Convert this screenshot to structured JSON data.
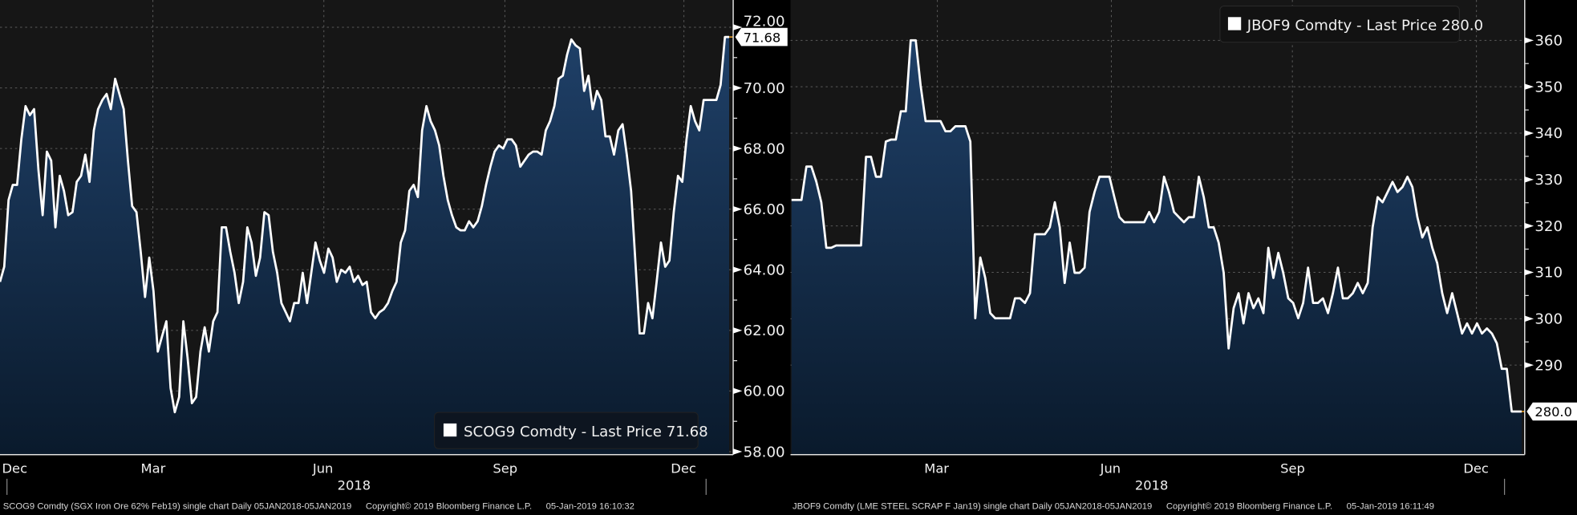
{
  "chart_data": [
    {
      "type": "area",
      "title": "SCOG9 Comdty (SGX Iron Ore 62% Feb19)",
      "legend": "SCOG9 Comdty - Last Price 71.68",
      "legend_placement": "bottom-right",
      "last_price": 71.68,
      "last_price_label": "71.68",
      "xlabel": "2018",
      "x_ticks": [
        "Dec",
        "Mar",
        "Jun",
        "Sep",
        "Dec"
      ],
      "y_ticks": [
        58,
        60,
        62,
        64,
        66,
        68,
        70,
        72
      ],
      "y_tick_labels": [
        "58.00",
        "60.00",
        "62.00",
        "64.00",
        "66.00",
        "68.00",
        "70.00",
        "72.00"
      ],
      "ylim": [
        57.9,
        72.9
      ],
      "grid": true,
      "values": [
        63.6,
        64.1,
        66.3,
        66.8,
        66.8,
        68.3,
        69.4,
        69.1,
        69.3,
        67.3,
        65.8,
        67.9,
        67.6,
        65.4,
        67.1,
        66.6,
        65.8,
        65.9,
        66.9,
        67.1,
        67.8,
        66.9,
        68.6,
        69.3,
        69.6,
        69.8,
        69.3,
        70.3,
        69.8,
        69.3,
        67.6,
        66.1,
        65.9,
        64.6,
        63.1,
        64.4,
        63.3,
        61.3,
        61.8,
        62.3,
        60.1,
        59.3,
        59.8,
        62.3,
        61.1,
        59.6,
        59.8,
        61.3,
        62.1,
        61.3,
        62.3,
        62.6,
        65.4,
        65.4,
        64.6,
        63.9,
        62.9,
        63.6,
        65.4,
        64.9,
        63.8,
        64.4,
        65.9,
        65.8,
        64.6,
        63.9,
        62.9,
        62.6,
        62.3,
        62.9,
        62.9,
        63.9,
        62.9,
        63.9,
        64.9,
        64.3,
        63.9,
        64.7,
        64.4,
        63.6,
        64.0,
        63.9,
        64.1,
        63.6,
        63.8,
        63.5,
        63.6,
        62.6,
        62.4,
        62.6,
        62.7,
        62.9,
        63.3,
        63.6,
        64.9,
        65.3,
        66.6,
        66.8,
        66.4,
        68.6,
        69.4,
        68.9,
        68.6,
        68.1,
        67.1,
        66.3,
        65.8,
        65.4,
        65.3,
        65.3,
        65.6,
        65.4,
        65.6,
        66.1,
        66.8,
        67.4,
        67.9,
        68.1,
        68.0,
        68.3,
        68.3,
        68.1,
        67.4,
        67.6,
        67.8,
        67.9,
        67.9,
        67.8,
        68.6,
        68.9,
        69.4,
        70.3,
        70.4,
        71.1,
        71.6,
        71.4,
        71.3,
        69.9,
        70.4,
        69.3,
        69.9,
        69.6,
        68.4,
        68.4,
        67.8,
        68.6,
        68.8,
        67.8,
        66.6,
        64.3,
        61.9,
        61.9,
        62.9,
        62.4,
        63.6,
        64.9,
        64.1,
        64.3,
        65.9,
        67.1,
        66.9,
        68.3,
        69.4,
        68.9,
        68.6,
        69.6,
        69.6,
        69.6,
        69.6,
        70.1,
        71.68,
        71.68
      ],
      "footer": {
        "description": "SCOG9 Comdty (SGX Iron Ore 62% Feb19) single chart  Daily 05JAN2018-05JAN2019",
        "copyright": "Copyright© 2019 Bloomberg Finance L.P.",
        "timestamp": "05-Jan-2019 16:10:32"
      }
    },
    {
      "type": "area",
      "title": "JBOF9 Comdty (LME STEEL SCRAP F Jan19)",
      "legend": "JBOF9 Comdty - Last Price 280.0",
      "legend_placement": "top-right",
      "last_price": 280.0,
      "last_price_label": "280.0",
      "xlabel": "2018",
      "x_ticks": [
        "Mar",
        "Jun",
        "Sep",
        "Dec"
      ],
      "y_ticks": [
        290,
        300,
        310,
        320,
        330,
        340,
        350,
        360
      ],
      "y_tick_labels": [
        "290",
        "300",
        "310",
        "320",
        "330",
        "340",
        "350",
        "360"
      ],
      "ylim": [
        270.7,
        368.7
      ],
      "grid": true,
      "values": [
        325.6,
        325.6,
        325.6,
        332.8,
        332.8,
        329.5,
        325.1,
        315.3,
        315.3,
        315.8,
        315.8,
        315.8,
        315.8,
        315.8,
        315.8,
        334.9,
        334.9,
        330.6,
        330.6,
        338.2,
        338.6,
        338.6,
        344.7,
        344.7,
        360,
        360,
        350.2,
        342.6,
        342.6,
        342.6,
        342.6,
        340.4,
        340.4,
        341.5,
        341.5,
        341.5,
        338.2,
        300.1,
        313.2,
        308.8,
        301.2,
        300.1,
        300.1,
        300.1,
        300.1,
        304.4,
        304.4,
        303.4,
        305.5,
        318.2,
        318.2,
        318.2,
        319.7,
        325.1,
        319.7,
        307.7,
        316.4,
        309.9,
        309.9,
        311.0,
        323.0,
        327.3,
        330.6,
        330.6,
        330.6,
        326.2,
        321.9,
        320.8,
        320.8,
        320.8,
        320.8,
        320.8,
        323.0,
        320.8,
        323.0,
        330.6,
        327.3,
        323.0,
        321.9,
        320.8,
        321.9,
        321.9,
        330.6,
        326.2,
        319.7,
        319.7,
        316.4,
        309.9,
        293.6,
        302.3,
        305.5,
        299.0,
        305.5,
        302.3,
        304.4,
        301.2,
        315.3,
        308.8,
        314.2,
        309.9,
        304.4,
        303.4,
        300.1,
        303.4,
        311.0,
        303.4,
        303.4,
        304.4,
        301.2,
        305.5,
        311.0,
        304.4,
        304.4,
        305.5,
        307.7,
        305.5,
        307.7,
        319.7,
        326.2,
        325.1,
        327.3,
        329.5,
        327.3,
        328.4,
        330.6,
        328.4,
        321.9,
        317.5,
        319.7,
        315.3,
        312.0,
        305.5,
        301.2,
        305.5,
        301.2,
        296.8,
        299.0,
        296.8,
        299.0,
        296.8,
        297.9,
        296.8,
        294.7,
        289.2,
        289.2,
        280.0,
        280.0,
        280.0
      ],
      "footer": {
        "description": "JBOF9 Comdty (LME STEEL SCRAP F Jan19) single chart  Daily 05JAN2018-05JAN2019",
        "copyright": "Copyright© 2019 Bloomberg Finance L.P.",
        "timestamp": "05-Jan-2019 16:11:49"
      }
    }
  ],
  "colors": {
    "fill_top": "#1f4068",
    "fill_bottom": "#0a1a2c",
    "line": "#ffffff",
    "last_price_line": "#f5a623",
    "plot_bg": "#161616"
  }
}
